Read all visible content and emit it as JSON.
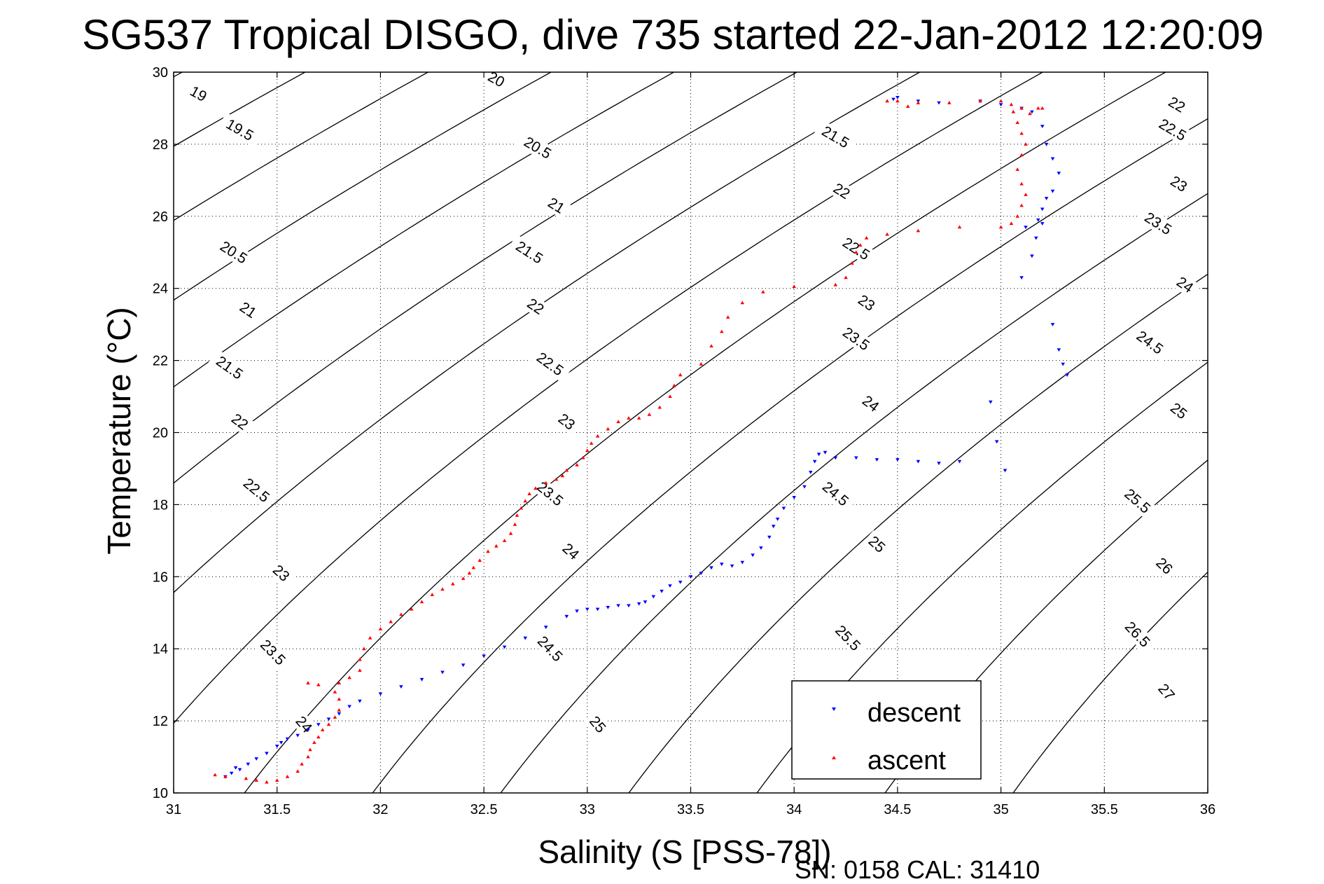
{
  "chart_data": {
    "type": "scatter",
    "title": "SG537 Tropical DISGO, dive 735 started 22-Jan-2012 12:20:09",
    "xlabel": "Salinity (S [PSS-78])",
    "ylabel": "Temperature (°C)",
    "xlim": [
      31,
      36
    ],
    "ylim": [
      10,
      30
    ],
    "x_ticks": [
      "31",
      "31.5",
      "32",
      "32.5",
      "33",
      "33.5",
      "34",
      "34.5",
      "35",
      "35.5",
      "36"
    ],
    "y_ticks": [
      "10",
      "12",
      "14",
      "16",
      "18",
      "20",
      "22",
      "24",
      "26",
      "28",
      "30"
    ],
    "grid": true,
    "legend_position": "bottom-right",
    "footer": "SN: 0158  CAL: 31410",
    "contour_labels": {
      "19": [
        [
          31.12,
          29.4
        ]
      ],
      "19.5": [
        [
          31.32,
          28.4
        ]
      ],
      "20": [
        [
          32.56,
          29.8
        ]
      ],
      "20.5": [
        [
          31.29,
          25.0
        ],
        [
          32.76,
          27.9
        ]
      ],
      "21": [
        [
          31.36,
          23.4
        ],
        [
          32.85,
          26.3
        ]
      ],
      "21.5": [
        [
          31.27,
          21.8
        ],
        [
          32.72,
          25.0
        ],
        [
          34.2,
          28.2
        ]
      ],
      "22": [
        [
          31.32,
          20.3
        ],
        [
          32.75,
          23.5
        ],
        [
          34.23,
          26.7
        ],
        [
          35.85,
          29.1
        ]
      ],
      "22.5": [
        [
          31.4,
          18.4
        ],
        [
          32.82,
          21.9
        ],
        [
          34.3,
          25.1
        ],
        [
          35.83,
          28.4
        ]
      ],
      "23": [
        [
          31.52,
          16.1
        ],
        [
          32.9,
          20.3
        ],
        [
          34.35,
          23.6
        ],
        [
          35.86,
          26.9
        ]
      ],
      "23.5": [
        [
          31.48,
          13.9
        ],
        [
          32.82,
          18.3
        ],
        [
          34.3,
          22.6
        ],
        [
          35.76,
          25.8
        ]
      ],
      "24": [
        [
          31.63,
          11.9
        ],
        [
          32.92,
          16.7
        ],
        [
          34.37,
          20.8
        ],
        [
          35.89,
          24.1
        ]
      ],
      "24.5": [
        [
          32.82,
          14.0
        ],
        [
          34.2,
          18.3
        ],
        [
          35.72,
          22.5
        ]
      ],
      "25": [
        [
          33.05,
          11.9
        ],
        [
          34.4,
          16.9
        ],
        [
          35.86,
          20.6
        ]
      ],
      "25.5": [
        [
          34.26,
          14.3
        ],
        [
          35.66,
          18.1
        ]
      ],
      "26": [
        [
          35.79,
          16.3
        ]
      ],
      "26.5": [
        [
          35.66,
          14.4
        ]
      ],
      "27": [
        [
          35.8,
          12.8
        ]
      ]
    },
    "series": [
      {
        "name": "descent",
        "color": "#0000ff",
        "marker": "triangle-down",
        "points": [
          [
            31.25,
            10.45
          ],
          [
            31.28,
            10.55
          ],
          [
            31.3,
            10.7
          ],
          [
            31.32,
            10.65
          ],
          [
            31.36,
            10.8
          ],
          [
            31.4,
            10.95
          ],
          [
            31.45,
            11.1
          ],
          [
            31.5,
            11.3
          ],
          [
            31.52,
            11.4
          ],
          [
            31.55,
            11.5
          ],
          [
            31.6,
            11.6
          ],
          [
            31.65,
            11.75
          ],
          [
            31.7,
            11.9
          ],
          [
            31.75,
            12.05
          ],
          [
            31.8,
            12.2
          ],
          [
            31.85,
            12.4
          ],
          [
            31.9,
            12.55
          ],
          [
            32.0,
            12.75
          ],
          [
            32.1,
            12.95
          ],
          [
            32.2,
            13.15
          ],
          [
            32.3,
            13.35
          ],
          [
            32.4,
            13.55
          ],
          [
            32.5,
            13.8
          ],
          [
            32.6,
            14.05
          ],
          [
            32.7,
            14.3
          ],
          [
            32.8,
            14.6
          ],
          [
            32.9,
            14.9
          ],
          [
            32.95,
            15.05
          ],
          [
            33.0,
            15.1
          ],
          [
            33.05,
            15.1
          ],
          [
            33.1,
            15.15
          ],
          [
            33.15,
            15.2
          ],
          [
            33.2,
            15.2
          ],
          [
            33.25,
            15.25
          ],
          [
            33.28,
            15.3
          ],
          [
            33.32,
            15.45
          ],
          [
            33.36,
            15.6
          ],
          [
            33.4,
            15.75
          ],
          [
            33.45,
            15.85
          ],
          [
            33.5,
            16.0
          ],
          [
            33.55,
            16.1
          ],
          [
            33.6,
            16.25
          ],
          [
            33.65,
            16.35
          ],
          [
            33.7,
            16.3
          ],
          [
            33.75,
            16.4
          ],
          [
            33.8,
            16.6
          ],
          [
            33.84,
            16.8
          ],
          [
            33.88,
            17.1
          ],
          [
            33.9,
            17.4
          ],
          [
            33.92,
            17.6
          ],
          [
            33.95,
            17.9
          ],
          [
            34.0,
            18.2
          ],
          [
            34.05,
            18.5
          ],
          [
            34.08,
            18.9
          ],
          [
            34.1,
            19.2
          ],
          [
            34.12,
            19.4
          ],
          [
            34.15,
            19.45
          ],
          [
            34.2,
            19.3
          ],
          [
            34.3,
            19.3
          ],
          [
            34.4,
            19.25
          ],
          [
            34.5,
            19.25
          ],
          [
            34.6,
            19.2
          ],
          [
            34.7,
            19.15
          ],
          [
            34.8,
            19.2
          ],
          [
            34.95,
            20.85
          ],
          [
            34.98,
            19.75
          ],
          [
            35.02,
            18.95
          ],
          [
            35.1,
            24.3
          ],
          [
            35.15,
            24.9
          ],
          [
            35.17,
            25.4
          ],
          [
            35.2,
            25.8
          ],
          [
            35.2,
            26.2
          ],
          [
            35.22,
            26.5
          ],
          [
            35.25,
            26.7
          ],
          [
            35.28,
            27.2
          ],
          [
            35.25,
            27.6
          ],
          [
            35.22,
            28.0
          ],
          [
            35.2,
            28.5
          ],
          [
            35.15,
            28.9
          ],
          [
            35.1,
            29.0
          ],
          [
            35.0,
            29.1
          ],
          [
            34.9,
            29.2
          ],
          [
            34.7,
            29.15
          ],
          [
            34.6,
            29.2
          ],
          [
            34.5,
            29.3
          ],
          [
            34.48,
            29.25
          ],
          [
            35.25,
            23.0
          ],
          [
            35.28,
            22.3
          ],
          [
            35.3,
            21.9
          ],
          [
            35.32,
            21.6
          ],
          [
            35.12,
            25.7
          ],
          [
            35.18,
            25.9
          ]
        ]
      },
      {
        "name": "ascent",
        "color": "#ff0000",
        "marker": "triangle-up",
        "points": [
          [
            31.2,
            10.5
          ],
          [
            31.25,
            10.45
          ],
          [
            31.35,
            10.4
          ],
          [
            31.4,
            10.35
          ],
          [
            31.45,
            10.3
          ],
          [
            31.5,
            10.35
          ],
          [
            31.55,
            10.45
          ],
          [
            31.6,
            10.6
          ],
          [
            31.62,
            10.8
          ],
          [
            31.65,
            11.0
          ],
          [
            31.66,
            11.2
          ],
          [
            31.68,
            11.4
          ],
          [
            31.7,
            11.55
          ],
          [
            31.72,
            11.75
          ],
          [
            31.75,
            11.9
          ],
          [
            31.78,
            12.1
          ],
          [
            31.8,
            12.3
          ],
          [
            31.8,
            12.6
          ],
          [
            31.78,
            12.8
          ],
          [
            31.7,
            13.0
          ],
          [
            31.65,
            13.05
          ],
          [
            31.8,
            13.05
          ],
          [
            31.85,
            13.2
          ],
          [
            31.9,
            13.4
          ],
          [
            31.9,
            13.7
          ],
          [
            31.92,
            14.0
          ],
          [
            31.95,
            14.3
          ],
          [
            32.0,
            14.55
          ],
          [
            32.05,
            14.75
          ],
          [
            32.1,
            14.95
          ],
          [
            32.15,
            15.1
          ],
          [
            32.2,
            15.3
          ],
          [
            32.25,
            15.5
          ],
          [
            32.3,
            15.65
          ],
          [
            32.35,
            15.8
          ],
          [
            32.4,
            15.95
          ],
          [
            32.43,
            16.1
          ],
          [
            32.45,
            16.25
          ],
          [
            32.48,
            16.45
          ],
          [
            32.52,
            16.7
          ],
          [
            32.56,
            16.85
          ],
          [
            32.6,
            17.0
          ],
          [
            32.63,
            17.2
          ],
          [
            32.65,
            17.45
          ],
          [
            32.66,
            17.7
          ],
          [
            32.68,
            17.9
          ],
          [
            32.7,
            18.1
          ],
          [
            32.72,
            18.3
          ],
          [
            32.75,
            18.45
          ],
          [
            32.8,
            18.6
          ],
          [
            32.85,
            18.7
          ],
          [
            32.88,
            18.8
          ],
          [
            32.9,
            18.95
          ],
          [
            32.95,
            19.1
          ],
          [
            32.98,
            19.3
          ],
          [
            33.0,
            19.5
          ],
          [
            33.02,
            19.7
          ],
          [
            33.05,
            19.9
          ],
          [
            33.1,
            20.1
          ],
          [
            33.15,
            20.3
          ],
          [
            33.2,
            20.4
          ],
          [
            33.25,
            20.4
          ],
          [
            33.3,
            20.5
          ],
          [
            33.35,
            20.7
          ],
          [
            33.4,
            21.0
          ],
          [
            33.42,
            21.3
          ],
          [
            33.45,
            21.6
          ],
          [
            33.55,
            21.9
          ],
          [
            33.6,
            22.4
          ],
          [
            33.65,
            22.8
          ],
          [
            33.68,
            23.2
          ],
          [
            33.75,
            23.6
          ],
          [
            33.85,
            23.9
          ],
          [
            34.0,
            24.05
          ],
          [
            34.2,
            24.1
          ],
          [
            34.25,
            24.3
          ],
          [
            34.28,
            24.7
          ],
          [
            34.3,
            25.0
          ],
          [
            34.32,
            25.2
          ],
          [
            34.35,
            25.4
          ],
          [
            34.45,
            25.5
          ],
          [
            34.6,
            25.6
          ],
          [
            34.8,
            25.7
          ],
          [
            35.0,
            25.7
          ],
          [
            35.05,
            25.8
          ],
          [
            35.08,
            26.0
          ],
          [
            35.1,
            26.3
          ],
          [
            35.12,
            26.6
          ],
          [
            35.1,
            26.9
          ],
          [
            35.08,
            27.3
          ],
          [
            35.1,
            27.7
          ],
          [
            35.12,
            28.0
          ],
          [
            35.1,
            28.3
          ],
          [
            35.08,
            28.6
          ],
          [
            35.06,
            28.9
          ],
          [
            35.05,
            29.1
          ],
          [
            35.1,
            29.0
          ],
          [
            35.2,
            29.0
          ],
          [
            35.0,
            29.2
          ],
          [
            34.9,
            29.2
          ],
          [
            34.75,
            29.15
          ],
          [
            34.6,
            29.15
          ],
          [
            34.5,
            29.2
          ],
          [
            34.45,
            29.2
          ],
          [
            34.55,
            29.05
          ],
          [
            35.18,
            29.0
          ],
          [
            35.14,
            28.85
          ]
        ]
      }
    ]
  }
}
